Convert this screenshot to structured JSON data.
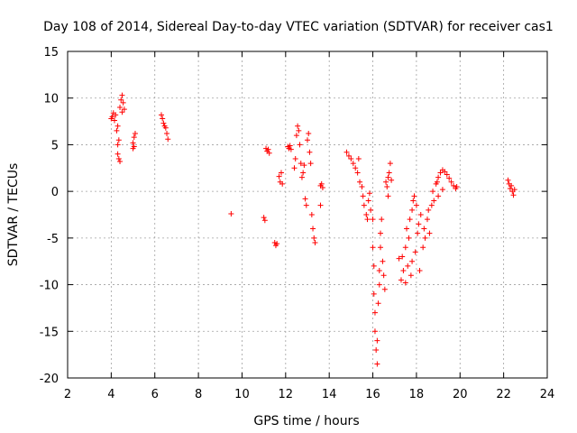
{
  "chart_data": {
    "type": "scatter",
    "title": "Day 108 of 2014, Sidereal Day-to-day VTEC variation (SDTVAR) for receiver cas1",
    "xlabel": "GPS time / hours",
    "ylabel": "SDTVAR / TECUs",
    "xlim": [
      2,
      24
    ],
    "ylim": [
      -20,
      15
    ],
    "xticks": [
      2,
      4,
      6,
      8,
      10,
      12,
      14,
      16,
      18,
      20,
      22,
      24
    ],
    "yticks": [
      -20,
      -15,
      -10,
      -5,
      0,
      5,
      10,
      15
    ],
    "grid": true,
    "marker": "+",
    "color": "#ff0000",
    "series": [
      {
        "name": "SDTVAR",
        "points": [
          [
            4.0,
            7.8
          ],
          [
            4.05,
            8.0
          ],
          [
            4.1,
            8.4
          ],
          [
            4.15,
            7.6
          ],
          [
            4.2,
            8.2
          ],
          [
            4.25,
            6.5
          ],
          [
            4.3,
            5.0
          ],
          [
            4.3,
            4.0
          ],
          [
            4.35,
            3.5
          ],
          [
            4.4,
            3.2
          ],
          [
            4.35,
            5.5
          ],
          [
            4.3,
            7.0
          ],
          [
            4.4,
            9.0
          ],
          [
            4.45,
            9.8
          ],
          [
            4.5,
            10.3
          ],
          [
            4.55,
            9.5
          ],
          [
            4.6,
            8.8
          ],
          [
            4.5,
            8.5
          ],
          [
            5.0,
            5.2
          ],
          [
            5.05,
            5.8
          ],
          [
            5.1,
            6.2
          ],
          [
            5.0,
            4.6
          ],
          [
            5.05,
            4.8
          ],
          [
            6.3,
            8.2
          ],
          [
            6.35,
            7.8
          ],
          [
            6.4,
            7.3
          ],
          [
            6.45,
            7.0
          ],
          [
            6.5,
            6.8
          ],
          [
            6.55,
            6.2
          ],
          [
            6.6,
            5.6
          ],
          [
            9.5,
            -2.4
          ],
          [
            11.0,
            -2.8
          ],
          [
            11.05,
            -3.1
          ],
          [
            11.1,
            4.6
          ],
          [
            11.15,
            4.3
          ],
          [
            11.2,
            4.5
          ],
          [
            11.25,
            4.1
          ],
          [
            11.5,
            -5.5
          ],
          [
            11.55,
            -5.8
          ],
          [
            11.6,
            -5.6
          ],
          [
            11.7,
            1.6
          ],
          [
            11.75,
            1.0
          ],
          [
            11.8,
            2.0
          ],
          [
            11.85,
            0.8
          ],
          [
            12.1,
            4.8
          ],
          [
            12.15,
            4.6
          ],
          [
            12.2,
            4.9
          ],
          [
            12.25,
            4.5
          ],
          [
            12.4,
            2.5
          ],
          [
            12.45,
            3.5
          ],
          [
            12.5,
            6.0
          ],
          [
            12.55,
            7.0
          ],
          [
            12.6,
            6.5
          ],
          [
            12.65,
            5.0
          ],
          [
            12.7,
            3.0
          ],
          [
            12.75,
            1.5
          ],
          [
            12.8,
            2.0
          ],
          [
            12.85,
            2.8
          ],
          [
            12.9,
            -0.8
          ],
          [
            12.95,
            -1.5
          ],
          [
            13.0,
            5.5
          ],
          [
            13.05,
            6.2
          ],
          [
            13.1,
            4.2
          ],
          [
            13.15,
            3.0
          ],
          [
            13.2,
            -2.5
          ],
          [
            13.25,
            -4.0
          ],
          [
            13.3,
            -5.0
          ],
          [
            13.35,
            -5.5
          ],
          [
            13.6,
            0.6
          ],
          [
            13.65,
            0.8
          ],
          [
            13.7,
            0.4
          ],
          [
            13.6,
            -1.5
          ],
          [
            14.8,
            4.2
          ],
          [
            14.9,
            3.8
          ],
          [
            15.0,
            3.5
          ],
          [
            15.1,
            3.0
          ],
          [
            15.2,
            2.5
          ],
          [
            15.3,
            2.0
          ],
          [
            15.35,
            3.5
          ],
          [
            15.4,
            1.0
          ],
          [
            15.5,
            0.5
          ],
          [
            15.55,
            -0.5
          ],
          [
            15.6,
            -1.5
          ],
          [
            15.7,
            -2.5
          ],
          [
            15.75,
            -3.0
          ],
          [
            15.8,
            -1.0
          ],
          [
            15.85,
            -0.2
          ],
          [
            15.9,
            -2.0
          ],
          [
            16.0,
            -3.0
          ],
          [
            16.0,
            -6.0
          ],
          [
            16.05,
            -8.0
          ],
          [
            16.05,
            -11.0
          ],
          [
            16.1,
            -13.0
          ],
          [
            16.1,
            -15.0
          ],
          [
            16.15,
            -17.0
          ],
          [
            16.2,
            -18.5
          ],
          [
            16.2,
            -16.0
          ],
          [
            16.25,
            -12.0
          ],
          [
            16.3,
            -10.0
          ],
          [
            16.3,
            -8.5
          ],
          [
            16.35,
            -6.0
          ],
          [
            16.35,
            -4.5
          ],
          [
            16.4,
            -3.0
          ],
          [
            16.45,
            -7.5
          ],
          [
            16.5,
            -9.0
          ],
          [
            16.55,
            -10.5
          ],
          [
            16.6,
            1.0
          ],
          [
            16.65,
            0.5
          ],
          [
            16.7,
            1.5
          ],
          [
            16.75,
            2.0
          ],
          [
            16.8,
            3.0
          ],
          [
            16.85,
            1.2
          ],
          [
            16.7,
            -0.5
          ],
          [
            17.2,
            -7.2
          ],
          [
            17.3,
            -9.5
          ],
          [
            17.35,
            -7.0
          ],
          [
            17.4,
            -8.5
          ],
          [
            17.5,
            -6.0
          ],
          [
            17.5,
            -9.8
          ],
          [
            17.55,
            -4.0
          ],
          [
            17.6,
            -8.0
          ],
          [
            17.65,
            -5.0
          ],
          [
            17.7,
            -3.0
          ],
          [
            17.75,
            -9.0
          ],
          [
            17.8,
            -2.0
          ],
          [
            17.8,
            -7.5
          ],
          [
            17.85,
            -1.0
          ],
          [
            17.9,
            -0.5
          ],
          [
            17.95,
            -6.5
          ],
          [
            18.0,
            -1.5
          ],
          [
            18.05,
            -4.5
          ],
          [
            18.1,
            -3.5
          ],
          [
            18.15,
            -8.5
          ],
          [
            18.2,
            -2.5
          ],
          [
            18.3,
            -6.0
          ],
          [
            18.35,
            -4.0
          ],
          [
            18.4,
            -5.0
          ],
          [
            18.5,
            -3.0
          ],
          [
            18.55,
            -2.0
          ],
          [
            18.6,
            -4.5
          ],
          [
            18.7,
            -1.5
          ],
          [
            18.75,
            0.0
          ],
          [
            18.8,
            -1.0
          ],
          [
            18.9,
            0.8
          ],
          [
            19.0,
            1.5
          ],
          [
            19.1,
            2.0
          ],
          [
            19.2,
            2.3
          ],
          [
            19.3,
            2.1
          ],
          [
            19.4,
            1.8
          ],
          [
            19.5,
            1.4
          ],
          [
            19.6,
            1.0
          ],
          [
            19.7,
            0.6
          ],
          [
            19.8,
            0.3
          ],
          [
            19.85,
            0.5
          ],
          [
            19.2,
            0.2
          ],
          [
            19.0,
            -0.5
          ],
          [
            18.95,
            1.0
          ],
          [
            22.2,
            1.2
          ],
          [
            22.25,
            0.8
          ],
          [
            22.3,
            0.3
          ],
          [
            22.35,
            0.6
          ],
          [
            22.4,
            0.0
          ],
          [
            22.45,
            -0.4
          ],
          [
            22.5,
            0.2
          ]
        ]
      }
    ]
  }
}
